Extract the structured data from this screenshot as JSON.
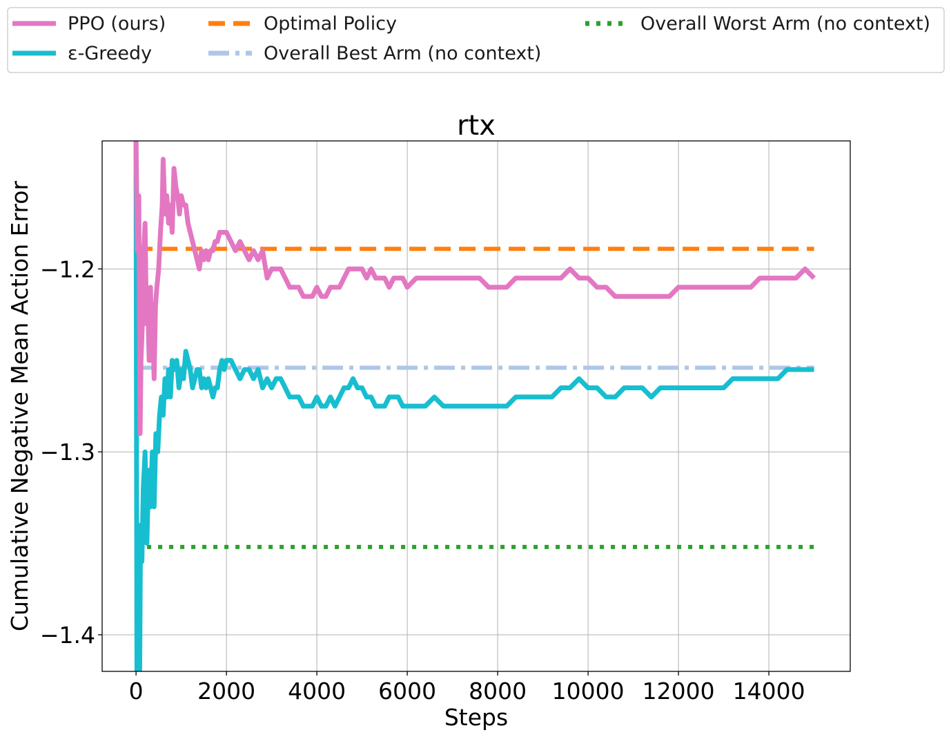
{
  "chart_data": {
    "type": "line",
    "title": "rtx",
    "xlabel": "Steps",
    "ylabel": "Cumulative Negative Mean Action Error",
    "xlim": [
      -750,
      15800
    ],
    "ylim": [
      -1.42,
      -1.13
    ],
    "xticks": [
      0,
      2000,
      4000,
      6000,
      8000,
      10000,
      12000,
      14000
    ],
    "yticks": [
      -1.4,
      -1.3,
      -1.2
    ],
    "ytick_labels": [
      "−1.4",
      "−1.3",
      "−1.2"
    ],
    "grid": true,
    "legend_placement": "top, above plot",
    "series": [
      {
        "name": "PPO (ours)",
        "color": "#e377c2",
        "style": "solid",
        "points": [
          [
            0,
            -1.13
          ],
          [
            30,
            -1.19
          ],
          [
            60,
            -1.16
          ],
          [
            90,
            -1.29
          ],
          [
            110,
            -1.25
          ],
          [
            140,
            -1.23
          ],
          [
            170,
            -1.19
          ],
          [
            200,
            -1.175
          ],
          [
            230,
            -1.23
          ],
          [
            260,
            -1.22
          ],
          [
            290,
            -1.25
          ],
          [
            320,
            -1.21
          ],
          [
            350,
            -1.25
          ],
          [
            380,
            -1.24
          ],
          [
            400,
            -1.26
          ],
          [
            430,
            -1.22
          ],
          [
            460,
            -1.21
          ],
          [
            500,
            -1.2
          ],
          [
            540,
            -1.18
          ],
          [
            580,
            -1.165
          ],
          [
            600,
            -1.14
          ],
          [
            640,
            -1.17
          ],
          [
            680,
            -1.16
          ],
          [
            720,
            -1.175
          ],
          [
            760,
            -1.165
          ],
          [
            800,
            -1.18
          ],
          [
            840,
            -1.145
          ],
          [
            880,
            -1.155
          ],
          [
            920,
            -1.16
          ],
          [
            960,
            -1.17
          ],
          [
            1000,
            -1.16
          ],
          [
            1050,
            -1.165
          ],
          [
            1100,
            -1.165
          ],
          [
            1150,
            -1.175
          ],
          [
            1200,
            -1.18
          ],
          [
            1250,
            -1.185
          ],
          [
            1300,
            -1.19
          ],
          [
            1350,
            -1.195
          ],
          [
            1400,
            -1.2
          ],
          [
            1450,
            -1.19
          ],
          [
            1500,
            -1.195
          ],
          [
            1550,
            -1.19
          ],
          [
            1600,
            -1.195
          ],
          [
            1650,
            -1.19
          ],
          [
            1700,
            -1.19
          ],
          [
            1750,
            -1.185
          ],
          [
            1800,
            -1.185
          ],
          [
            1850,
            -1.18
          ],
          [
            1900,
            -1.18
          ],
          [
            1950,
            -1.18
          ],
          [
            2000,
            -1.18
          ],
          [
            2100,
            -1.185
          ],
          [
            2200,
            -1.19
          ],
          [
            2300,
            -1.185
          ],
          [
            2400,
            -1.19
          ],
          [
            2500,
            -1.195
          ],
          [
            2600,
            -1.19
          ],
          [
            2700,
            -1.195
          ],
          [
            2800,
            -1.19
          ],
          [
            2900,
            -1.205
          ],
          [
            3000,
            -1.2
          ],
          [
            3100,
            -1.2
          ],
          [
            3200,
            -1.2
          ],
          [
            3300,
            -1.205
          ],
          [
            3400,
            -1.21
          ],
          [
            3500,
            -1.21
          ],
          [
            3600,
            -1.21
          ],
          [
            3700,
            -1.215
          ],
          [
            3800,
            -1.215
          ],
          [
            3900,
            -1.215
          ],
          [
            4000,
            -1.21
          ],
          [
            4100,
            -1.215
          ],
          [
            4200,
            -1.215
          ],
          [
            4300,
            -1.21
          ],
          [
            4400,
            -1.21
          ],
          [
            4500,
            -1.21
          ],
          [
            4600,
            -1.205
          ],
          [
            4700,
            -1.2
          ],
          [
            4800,
            -1.2
          ],
          [
            4900,
            -1.2
          ],
          [
            5000,
            -1.2
          ],
          [
            5100,
            -1.205
          ],
          [
            5200,
            -1.2
          ],
          [
            5300,
            -1.205
          ],
          [
            5400,
            -1.205
          ],
          [
            5500,
            -1.205
          ],
          [
            5600,
            -1.21
          ],
          [
            5700,
            -1.205
          ],
          [
            5800,
            -1.205
          ],
          [
            5900,
            -1.205
          ],
          [
            6000,
            -1.21
          ],
          [
            6200,
            -1.205
          ],
          [
            6400,
            -1.205
          ],
          [
            6600,
            -1.205
          ],
          [
            6800,
            -1.205
          ],
          [
            7000,
            -1.205
          ],
          [
            7200,
            -1.205
          ],
          [
            7400,
            -1.205
          ],
          [
            7600,
            -1.205
          ],
          [
            7800,
            -1.21
          ],
          [
            8000,
            -1.21
          ],
          [
            8200,
            -1.21
          ],
          [
            8400,
            -1.205
          ],
          [
            8600,
            -1.205
          ],
          [
            8800,
            -1.205
          ],
          [
            9000,
            -1.205
          ],
          [
            9200,
            -1.205
          ],
          [
            9400,
            -1.205
          ],
          [
            9600,
            -1.2
          ],
          [
            9800,
            -1.205
          ],
          [
            10000,
            -1.205
          ],
          [
            10200,
            -1.21
          ],
          [
            10400,
            -1.21
          ],
          [
            10600,
            -1.215
          ],
          [
            10800,
            -1.215
          ],
          [
            11000,
            -1.215
          ],
          [
            11200,
            -1.215
          ],
          [
            11400,
            -1.215
          ],
          [
            11600,
            -1.215
          ],
          [
            11800,
            -1.215
          ],
          [
            12000,
            -1.21
          ],
          [
            12200,
            -1.21
          ],
          [
            12400,
            -1.21
          ],
          [
            12600,
            -1.21
          ],
          [
            12800,
            -1.21
          ],
          [
            13000,
            -1.21
          ],
          [
            13200,
            -1.21
          ],
          [
            13400,
            -1.21
          ],
          [
            13600,
            -1.21
          ],
          [
            13800,
            -1.205
          ],
          [
            14000,
            -1.205
          ],
          [
            14200,
            -1.205
          ],
          [
            14400,
            -1.205
          ],
          [
            14600,
            -1.205
          ],
          [
            14800,
            -1.2
          ],
          [
            15000,
            -1.205
          ]
        ]
      },
      {
        "name": "ε-Greedy",
        "color": "#17becf",
        "style": "solid",
        "points": [
          [
            0,
            -1.13
          ],
          [
            20,
            -1.42
          ],
          [
            50,
            -1.4
          ],
          [
            80,
            -1.42
          ],
          [
            100,
            -1.34
          ],
          [
            130,
            -1.36
          ],
          [
            160,
            -1.32
          ],
          [
            200,
            -1.3
          ],
          [
            240,
            -1.35
          ],
          [
            280,
            -1.31
          ],
          [
            320,
            -1.33
          ],
          [
            360,
            -1.3
          ],
          [
            400,
            -1.33
          ],
          [
            440,
            -1.29
          ],
          [
            480,
            -1.3
          ],
          [
            520,
            -1.28
          ],
          [
            560,
            -1.27
          ],
          [
            600,
            -1.28
          ],
          [
            640,
            -1.26
          ],
          [
            680,
            -1.27
          ],
          [
            720,
            -1.255
          ],
          [
            760,
            -1.27
          ],
          [
            800,
            -1.25
          ],
          [
            850,
            -1.255
          ],
          [
            900,
            -1.25
          ],
          [
            950,
            -1.265
          ],
          [
            1000,
            -1.255
          ],
          [
            1050,
            -1.26
          ],
          [
            1100,
            -1.245
          ],
          [
            1150,
            -1.25
          ],
          [
            1200,
            -1.255
          ],
          [
            1250,
            -1.265
          ],
          [
            1300,
            -1.26
          ],
          [
            1350,
            -1.255
          ],
          [
            1400,
            -1.255
          ],
          [
            1450,
            -1.265
          ],
          [
            1500,
            -1.26
          ],
          [
            1550,
            -1.265
          ],
          [
            1600,
            -1.26
          ],
          [
            1650,
            -1.265
          ],
          [
            1700,
            -1.27
          ],
          [
            1750,
            -1.265
          ],
          [
            1800,
            -1.265
          ],
          [
            1850,
            -1.255
          ],
          [
            1900,
            -1.25
          ],
          [
            1950,
            -1.255
          ],
          [
            2000,
            -1.25
          ],
          [
            2100,
            -1.25
          ],
          [
            2200,
            -1.255
          ],
          [
            2300,
            -1.26
          ],
          [
            2400,
            -1.255
          ],
          [
            2500,
            -1.255
          ],
          [
            2600,
            -1.26
          ],
          [
            2700,
            -1.255
          ],
          [
            2800,
            -1.265
          ],
          [
            2900,
            -1.26
          ],
          [
            3000,
            -1.265
          ],
          [
            3100,
            -1.26
          ],
          [
            3200,
            -1.26
          ],
          [
            3300,
            -1.265
          ],
          [
            3400,
            -1.27
          ],
          [
            3500,
            -1.27
          ],
          [
            3600,
            -1.27
          ],
          [
            3700,
            -1.275
          ],
          [
            3800,
            -1.275
          ],
          [
            3900,
            -1.275
          ],
          [
            4000,
            -1.27
          ],
          [
            4100,
            -1.275
          ],
          [
            4200,
            -1.275
          ],
          [
            4300,
            -1.27
          ],
          [
            4400,
            -1.275
          ],
          [
            4500,
            -1.27
          ],
          [
            4600,
            -1.265
          ],
          [
            4700,
            -1.265
          ],
          [
            4800,
            -1.26
          ],
          [
            4900,
            -1.265
          ],
          [
            5000,
            -1.265
          ],
          [
            5100,
            -1.27
          ],
          [
            5200,
            -1.27
          ],
          [
            5300,
            -1.275
          ],
          [
            5400,
            -1.275
          ],
          [
            5500,
            -1.275
          ],
          [
            5600,
            -1.27
          ],
          [
            5700,
            -1.27
          ],
          [
            5800,
            -1.27
          ],
          [
            5900,
            -1.275
          ],
          [
            6000,
            -1.275
          ],
          [
            6200,
            -1.275
          ],
          [
            6400,
            -1.275
          ],
          [
            6600,
            -1.27
          ],
          [
            6800,
            -1.275
          ],
          [
            7000,
            -1.275
          ],
          [
            7200,
            -1.275
          ],
          [
            7400,
            -1.275
          ],
          [
            7600,
            -1.275
          ],
          [
            7800,
            -1.275
          ],
          [
            8000,
            -1.275
          ],
          [
            8200,
            -1.275
          ],
          [
            8400,
            -1.27
          ],
          [
            8600,
            -1.27
          ],
          [
            8800,
            -1.27
          ],
          [
            9000,
            -1.27
          ],
          [
            9200,
            -1.27
          ],
          [
            9400,
            -1.265
          ],
          [
            9600,
            -1.265
          ],
          [
            9800,
            -1.26
          ],
          [
            10000,
            -1.265
          ],
          [
            10200,
            -1.265
          ],
          [
            10400,
            -1.27
          ],
          [
            10600,
            -1.27
          ],
          [
            10800,
            -1.265
          ],
          [
            11000,
            -1.265
          ],
          [
            11200,
            -1.265
          ],
          [
            11400,
            -1.27
          ],
          [
            11600,
            -1.265
          ],
          [
            11800,
            -1.265
          ],
          [
            12000,
            -1.265
          ],
          [
            12200,
            -1.265
          ],
          [
            12400,
            -1.265
          ],
          [
            12600,
            -1.265
          ],
          [
            12800,
            -1.265
          ],
          [
            13000,
            -1.265
          ],
          [
            13200,
            -1.26
          ],
          [
            13400,
            -1.26
          ],
          [
            13600,
            -1.26
          ],
          [
            13800,
            -1.26
          ],
          [
            14000,
            -1.26
          ],
          [
            14200,
            -1.26
          ],
          [
            14400,
            -1.255
          ],
          [
            14600,
            -1.255
          ],
          [
            14800,
            -1.255
          ],
          [
            15000,
            -1.255
          ]
        ]
      },
      {
        "name": "Optimal Policy",
        "color": "#ff7f0e",
        "style": "dashed",
        "points": [
          [
            0,
            -1.189
          ],
          [
            15000,
            -1.189
          ]
        ]
      },
      {
        "name": "Overall Best Arm (no context)",
        "color": "#aec7e8",
        "style": "dashdot",
        "points": [
          [
            0,
            -1.254
          ],
          [
            15000,
            -1.254
          ]
        ]
      },
      {
        "name": "Overall Worst Arm (no context)",
        "color": "#2ca02c",
        "style": "dotted",
        "points": [
          [
            0,
            -1.352
          ],
          [
            15000,
            -1.352
          ]
        ]
      }
    ]
  }
}
